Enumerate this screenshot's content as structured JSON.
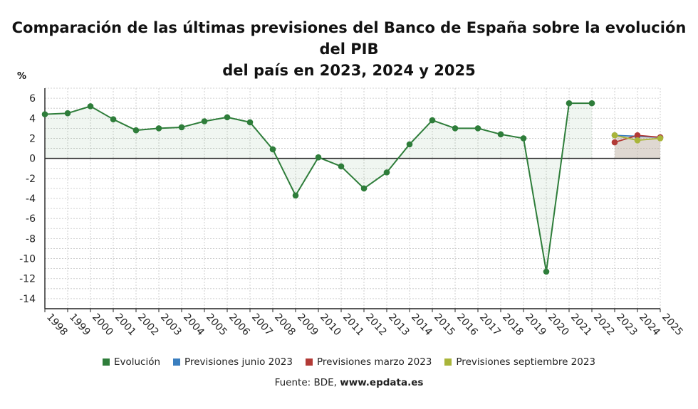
{
  "title_line1": "Comparación de las últimas previsiones del Banco de España sobre la evolución del PIB",
  "title_line2": "del país en 2023, 2024 y 2025",
  "source_prefix": "Fuente: BDE, ",
  "source_site": "www.epdata.es",
  "chart_data": {
    "type": "line",
    "ylabel": "%",
    "ylim": [
      -15,
      7
    ],
    "yticks": [
      6,
      4,
      2,
      0,
      -2,
      -4,
      -6,
      -8,
      -10,
      -12,
      -14
    ],
    "x_categories": [
      "1998",
      "1999",
      "2000",
      "2001",
      "2002",
      "2003",
      "2004",
      "2005",
      "2006",
      "2007",
      "2008",
      "2009",
      "2010",
      "2011",
      "2012",
      "2013",
      "2014",
      "2015",
      "2016",
      "2017",
      "2018",
      "2019",
      "2020",
      "2021",
      "2022",
      "2023",
      "2024",
      "2025"
    ],
    "grid": true,
    "legend_position": "bottom",
    "series": [
      {
        "name": "Evolución",
        "color": "#2e7d3a",
        "x": [
          "1998",
          "1999",
          "2000",
          "2001",
          "2002",
          "2003",
          "2004",
          "2005",
          "2006",
          "2007",
          "2008",
          "2009",
          "2010",
          "2011",
          "2012",
          "2013",
          "2014",
          "2015",
          "2016",
          "2017",
          "2018",
          "2019",
          "2020",
          "2021",
          "2022"
        ],
        "values": [
          4.4,
          4.5,
          5.2,
          3.9,
          2.8,
          3.0,
          3.1,
          3.7,
          4.1,
          3.6,
          0.9,
          -3.7,
          0.1,
          -0.8,
          -3.0,
          -1.4,
          1.4,
          3.8,
          3.0,
          3.0,
          2.4,
          2.0,
          -11.3,
          5.5,
          5.5
        ]
      },
      {
        "name": "Previsiones junio 2023",
        "color": "#3a7ebf",
        "x": [
          "2023",
          "2024",
          "2025"
        ],
        "values": [
          2.3,
          2.2,
          2.1
        ]
      },
      {
        "name": "Previsiones marzo 2023",
        "color": "#b23a36",
        "x": [
          "2023",
          "2024",
          "2025"
        ],
        "values": [
          1.6,
          2.3,
          2.1
        ]
      },
      {
        "name": "Previsiones septiembre 2023",
        "color": "#a9b53a",
        "x": [
          "2023",
          "2024",
          "2025"
        ],
        "values": [
          2.3,
          1.8,
          2.0
        ]
      }
    ]
  }
}
